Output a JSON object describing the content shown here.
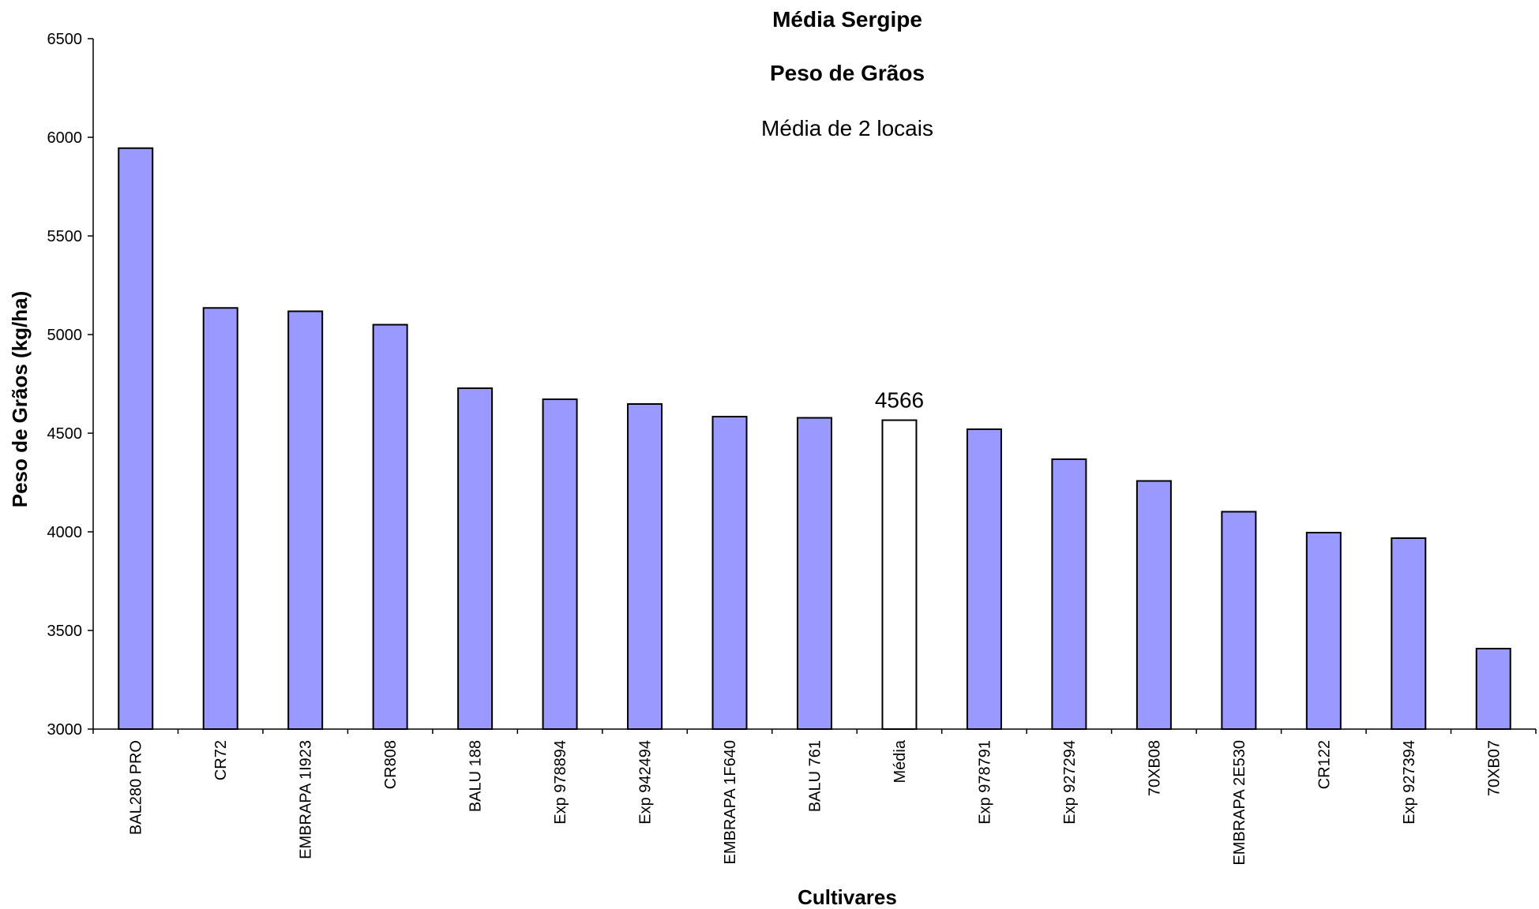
{
  "chart_data": {
    "type": "bar",
    "title": "Média Sergipe",
    "subtitle": "Peso de Grãos",
    "subtitle2": "Média de 2 locais",
    "xlabel": "Cultivares",
    "ylabel": "Peso de Grãos (kg/ha)",
    "ylim": [
      3000,
      6500
    ],
    "yticks": [
      3000,
      3500,
      4000,
      4500,
      5000,
      5500,
      6000,
      6500
    ],
    "grid": false,
    "legend": "none",
    "categories": [
      "BAL280 PRO",
      "CR72",
      "EMBRAPA 1I923",
      "CR808",
      "BALU 188",
      "Exp 978894",
      "Exp 942494",
      "EMBRAPA 1F640",
      "BALU 761",
      "Média",
      "Exp 978791",
      "Exp 927294",
      "70XB08",
      "EMBRAPA 2E530",
      "CR122",
      "Exp 927394",
      "70XB07"
    ],
    "values": [
      5945,
      5135,
      5118,
      5050,
      4728,
      4672,
      4648,
      4584,
      4578,
      4566,
      4520,
      4368,
      4258,
      4102,
      3996,
      3968,
      3408
    ],
    "highlight_index": 9,
    "highlight_label": "4566",
    "colors": {
      "bar": "#9999ff",
      "highlight_bar": "#ffffff",
      "outline": "#000000"
    }
  }
}
